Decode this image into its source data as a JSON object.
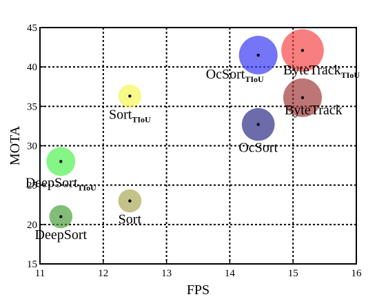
{
  "chart_data": {
    "type": "scatter",
    "xlabel": "FPS",
    "ylabel": "MOTA",
    "xlim": [
      11,
      16
    ],
    "ylim": [
      15,
      45
    ],
    "xticks": [
      "11",
      "12",
      "13",
      "14",
      "15",
      "16"
    ],
    "yticks": [
      "15",
      "20",
      "25",
      "30",
      "35",
      "40",
      "45"
    ],
    "grid": true,
    "points": [
      {
        "label": "DeepSort",
        "sub": "",
        "x": 11.33,
        "y": 21.0,
        "size": 0.6,
        "color": "#3f9a2f",
        "opacity": 0.65,
        "label_pos": "below"
      },
      {
        "label": "DeepSort",
        "sub": "TIoU",
        "x": 11.33,
        "y": 28.0,
        "size": 0.75,
        "color": "#33ee33",
        "opacity": 0.6,
        "label_pos": "below"
      },
      {
        "label": "Sort",
        "sub": "",
        "x": 12.42,
        "y": 23.0,
        "size": 0.6,
        "color": "#9a9a3a",
        "opacity": 0.6,
        "label_pos": "below"
      },
      {
        "label": "Sort",
        "sub": "TIoU",
        "x": 12.42,
        "y": 36.3,
        "size": 0.6,
        "color": "#f5f53a",
        "opacity": 0.6,
        "label_pos": "below"
      },
      {
        "label": "OcSort",
        "sub": "",
        "x": 14.45,
        "y": 32.7,
        "size": 0.85,
        "color": "#2e2e88",
        "opacity": 0.7,
        "label_pos": "below"
      },
      {
        "label": "OcSort",
        "sub": "TIoU",
        "x": 14.45,
        "y": 41.5,
        "size": 1.0,
        "color": "#3b3bf5",
        "opacity": 0.7,
        "label_pos": "below-left"
      },
      {
        "label": "ByteTrack",
        "sub": "",
        "x": 15.15,
        "y": 36.1,
        "size": 1.0,
        "color": "#9b2b2b",
        "opacity": 0.65,
        "label_pos": "below-right"
      },
      {
        "label": "ByteTrack",
        "sub": "TIoU",
        "x": 15.15,
        "y": 42.1,
        "size": 1.1,
        "color": "#f53a3a",
        "opacity": 0.65,
        "label_pos": "below-right"
      }
    ]
  }
}
